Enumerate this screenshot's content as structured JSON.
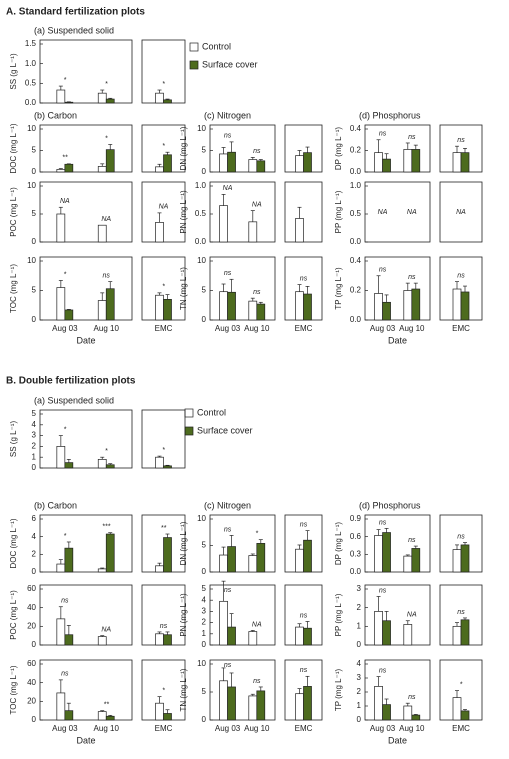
{
  "sections": [
    {
      "title": "A. Standard fertilization plots"
    },
    {
      "title": "B. Double fertilization plots"
    }
  ],
  "chart_data": [
    {
      "type": "bar",
      "title": "(a) Suspended solid",
      "ylabel": "SS (g L⁻¹)",
      "categories": [
        null,
        null,
        null
      ],
      "ylim": [
        0,
        1.5
      ],
      "yticks": [
        {
          "value": 0,
          "label": "0.0"
        },
        {
          "value": 0.5,
          "label": "0.5"
        },
        {
          "value": 1,
          "label": "1.0"
        },
        {
          "value": 1.5,
          "label": "1.5"
        }
      ],
      "annotations": [
        "*",
        "*",
        "*"
      ],
      "series": [
        {
          "name": "Control",
          "color": "#ffffff",
          "values": [
            0.33,
            0.25,
            0.25
          ],
          "errors": [
            0.1,
            0.08,
            0.08
          ]
        },
        {
          "name": "Surface cover",
          "color": "#4d6b1e",
          "values": [
            0.02,
            0.1,
            0.08
          ],
          "errors": [
            0.01,
            0.02,
            0.02
          ]
        }
      ]
    },
    {
      "type": "bar",
      "title": "(b) Carbon",
      "ylabel": "DOC (mg L⁻¹)",
      "categories": [
        null,
        null,
        null
      ],
      "ylim": [
        0,
        10
      ],
      "yticks": [
        0,
        5,
        10
      ],
      "annotations": [
        "**",
        "*",
        "*"
      ],
      "series": [
        {
          "name": "Control",
          "color": "#ffffff",
          "values": [
            0.6,
            1.3,
            1.2
          ],
          "errors": [
            0.2,
            0.6,
            0.6
          ]
        },
        {
          "name": "Surface cover",
          "color": "#4d6b1e",
          "values": [
            1.8,
            5.2,
            4.0
          ],
          "errors": [
            0.1,
            1.2,
            0.6
          ]
        }
      ]
    },
    {
      "type": "bar",
      "ylabel": "POC (mg L⁻¹)",
      "categories": [
        null,
        null,
        null
      ],
      "ylim": [
        0,
        10
      ],
      "yticks": [
        0,
        5,
        10
      ],
      "annotations": [
        "NA",
        "NA",
        "NA"
      ],
      "series": [
        {
          "name": "Control",
          "color": "#ffffff",
          "values": [
            5.0,
            3.0,
            3.5
          ],
          "errors": [
            1.2,
            null,
            1.7
          ]
        },
        {
          "name": "Surface cover",
          "color": "#4d6b1e",
          "values": [
            null,
            null,
            null
          ],
          "errors": [
            null,
            null,
            null
          ]
        }
      ]
    },
    {
      "type": "bar",
      "ylabel": "TOC (mg L⁻¹)",
      "xlabel": "Date",
      "categories": [
        "Aug 03",
        "Aug 10",
        "EMC"
      ],
      "ylim": [
        0,
        10
      ],
      "yticks": [
        0,
        5,
        10
      ],
      "annotations": [
        "*",
        "ns",
        "*"
      ],
      "series": [
        {
          "name": "Control",
          "color": "#ffffff",
          "values": [
            5.5,
            3.3,
            4.2
          ],
          "errors": [
            1.2,
            1.3,
            0.4
          ]
        },
        {
          "name": "Surface cover",
          "color": "#4d6b1e",
          "values": [
            1.7,
            5.3,
            3.5
          ],
          "errors": [
            0.1,
            1.2,
            0.8
          ]
        }
      ]
    },
    {
      "type": "bar",
      "title": "(c) Nitrogen",
      "ylabel": "DN (mg L⁻¹)",
      "categories": [
        null,
        null,
        null
      ],
      "ylim": [
        0,
        10
      ],
      "yticks": [
        0,
        5,
        10
      ],
      "annotations": [
        "ns",
        "ns",
        null
      ],
      "series": [
        {
          "name": "Control",
          "color": "#ffffff",
          "values": [
            4.2,
            2.9,
            3.8
          ],
          "errors": [
            1.5,
            0.5,
            1.2
          ]
        },
        {
          "name": "Surface cover",
          "color": "#4d6b1e",
          "values": [
            4.6,
            2.6,
            4.5
          ],
          "errors": [
            2.4,
            0.3,
            1.3
          ]
        }
      ]
    },
    {
      "type": "bar",
      "ylabel": "PN (mg L⁻¹)",
      "categories": [
        null,
        null,
        null
      ],
      "ylim": [
        0,
        1
      ],
      "yticks": [
        {
          "value": 0,
          "label": "0.0"
        },
        {
          "value": 0.5,
          "label": "0.5"
        },
        {
          "value": 1,
          "label": "1.0"
        }
      ],
      "annotations": [
        "NA",
        "NA",
        null
      ],
      "series": [
        {
          "name": "Control",
          "color": "#ffffff",
          "values": [
            0.65,
            0.36,
            0.42
          ],
          "errors": [
            0.2,
            0.2,
            0.2
          ]
        },
        {
          "name": "Surface cover",
          "color": "#4d6b1e",
          "values": [
            null,
            null,
            null
          ],
          "errors": [
            null,
            null,
            null
          ]
        }
      ]
    },
    {
      "type": "bar",
      "ylabel": "TN (mg L⁻¹)",
      "categories": [
        "Aug 03",
        "Aug 10",
        "EMC"
      ],
      "ylim": [
        0,
        10
      ],
      "yticks": [
        0,
        5,
        10
      ],
      "annotations": [
        "ns",
        "ns",
        "ns"
      ],
      "series": [
        {
          "name": "Control",
          "color": "#ffffff",
          "values": [
            4.8,
            3.2,
            4.8
          ],
          "errors": [
            1.3,
            0.5,
            1.2
          ]
        },
        {
          "name": "Surface cover",
          "color": "#4d6b1e",
          "values": [
            4.7,
            2.7,
            4.4
          ],
          "errors": [
            2.2,
            0.3,
            1.3
          ]
        }
      ]
    },
    {
      "type": "bar",
      "title": "(d) Phosphorus",
      "ylabel": "DP (mg L⁻¹)",
      "categories": [
        null,
        null,
        null
      ],
      "ylim": [
        0,
        0.4
      ],
      "yticks": [
        {
          "value": 0,
          "label": "0.0"
        },
        {
          "value": 0.2,
          "label": "0.2"
        },
        {
          "value": 0.4,
          "label": "0.4"
        }
      ],
      "annotations": [
        "ns",
        "ns",
        "ns"
      ],
      "series": [
        {
          "name": "Control",
          "color": "#ffffff",
          "values": [
            0.18,
            0.21,
            0.18
          ],
          "errors": [
            0.12,
            0.06,
            0.06
          ]
        },
        {
          "name": "Surface cover",
          "color": "#4d6b1e",
          "values": [
            0.12,
            0.21,
            0.18
          ],
          "errors": [
            0.05,
            0.04,
            0.04
          ]
        }
      ]
    },
    {
      "type": "bar",
      "ylabel": "PP (mg L⁻¹)",
      "categories": [
        null,
        null,
        null
      ],
      "ylim": [
        0,
        1
      ],
      "yticks": [
        {
          "value": 0,
          "label": "0.0"
        },
        {
          "value": 0.5,
          "label": "0.5"
        },
        {
          "value": 1,
          "label": "1.0"
        }
      ],
      "annotations": [
        "NA",
        "NA",
        "NA"
      ],
      "series": [
        {
          "name": "Control",
          "color": "#ffffff",
          "values": [
            null,
            null,
            null
          ],
          "errors": [
            null,
            null,
            null
          ]
        },
        {
          "name": "Surface cover",
          "color": "#4d6b1e",
          "values": [
            null,
            null,
            null
          ],
          "errors": [
            null,
            null,
            null
          ]
        }
      ]
    },
    {
      "type": "bar",
      "ylabel": "TP (mg L⁻¹)",
      "xlabel": "Date",
      "categories": [
        "Aug 03",
        "Aug 10",
        "EMC"
      ],
      "ylim": [
        0,
        0.4
      ],
      "yticks": [
        {
          "value": 0,
          "label": "0.0"
        },
        {
          "value": 0.2,
          "label": "0.2"
        },
        {
          "value": 0.4,
          "label": "0.4"
        }
      ],
      "annotations": [
        "ns",
        "ns",
        "ns"
      ],
      "series": [
        {
          "name": "Control",
          "color": "#ffffff",
          "values": [
            0.18,
            0.2,
            0.21
          ],
          "errors": [
            0.12,
            0.05,
            0.05
          ]
        },
        {
          "name": "Surface cover",
          "color": "#4d6b1e",
          "values": [
            0.12,
            0.21,
            0.19
          ],
          "errors": [
            0.05,
            0.04,
            0.04
          ]
        }
      ]
    },
    {
      "type": "bar",
      "title": "(a) Suspended solid",
      "ylabel": "SS (g L⁻¹)",
      "categories": [
        null,
        null,
        null
      ],
      "ylim": [
        0,
        5
      ],
      "yticks": [
        0,
        1,
        2,
        3,
        4,
        5
      ],
      "annotations": [
        "*",
        "*",
        "*"
      ],
      "series": [
        {
          "name": "Control",
          "color": "#ffffff",
          "values": [
            2.0,
            0.8,
            1.0
          ],
          "errors": [
            1.0,
            0.2,
            0.1
          ]
        },
        {
          "name": "Surface cover",
          "color": "#4d6b1e",
          "values": [
            0.5,
            0.3,
            0.2
          ],
          "errors": [
            0.3,
            0.1,
            0.05
          ]
        }
      ]
    },
    {
      "type": "bar",
      "title": "(b) Carbon",
      "ylabel": "DOC (mg L⁻¹)",
      "categories": [
        null,
        null,
        null
      ],
      "ylim": [
        0,
        6
      ],
      "yticks": [
        0,
        2,
        4,
        6
      ],
      "annotations": [
        "*",
        "***",
        "**"
      ],
      "series": [
        {
          "name": "Control",
          "color": "#ffffff",
          "values": [
            0.9,
            0.35,
            0.7
          ],
          "errors": [
            0.5,
            0.1,
            0.3
          ]
        },
        {
          "name": "Surface cover",
          "color": "#4d6b1e",
          "values": [
            2.7,
            4.3,
            3.9
          ],
          "errors": [
            0.7,
            0.15,
            0.4
          ]
        }
      ]
    },
    {
      "type": "bar",
      "ylabel": "POC (mg L⁻¹)",
      "categories": [
        null,
        null,
        null
      ],
      "ylim": [
        0,
        60
      ],
      "yticks": [
        0,
        20,
        40,
        60
      ],
      "annotations": [
        "ns",
        "NA",
        "ns"
      ],
      "series": [
        {
          "name": "Control",
          "color": "#ffffff",
          "values": [
            28,
            9,
            12
          ],
          "errors": [
            13,
            1,
            2
          ]
        },
        {
          "name": "Surface cover",
          "color": "#4d6b1e",
          "values": [
            11,
            null,
            11
          ],
          "errors": [
            10,
            null,
            3
          ]
        }
      ]
    },
    {
      "type": "bar",
      "ylabel": "TOC (mg L⁻¹)",
      "xlabel": "Date",
      "categories": [
        "Aug 03",
        "Aug 10",
        "EMC"
      ],
      "ylim": [
        0,
        60
      ],
      "yticks": [
        0,
        20,
        40,
        60
      ],
      "annotations": [
        "ns",
        "**",
        "*"
      ],
      "series": [
        {
          "name": "Control",
          "color": "#ffffff",
          "values": [
            29,
            9,
            18
          ],
          "errors": [
            14,
            1,
            7
          ]
        },
        {
          "name": "Surface cover",
          "color": "#4d6b1e",
          "values": [
            10,
            4,
            7
          ],
          "errors": [
            8,
            1,
            4
          ]
        }
      ]
    },
    {
      "type": "bar",
      "title": "(c) Nitrogen",
      "ylabel": "DN (mg L⁻¹)",
      "categories": [
        null,
        null,
        null
      ],
      "ylim": [
        0,
        10
      ],
      "yticks": [
        0,
        5,
        10
      ],
      "annotations": [
        "ns",
        "*",
        "ns"
      ],
      "series": [
        {
          "name": "Control",
          "color": "#ffffff",
          "values": [
            3.2,
            3.1,
            4.3
          ],
          "errors": [
            1.5,
            0.3,
            0.8
          ]
        },
        {
          "name": "Surface cover",
          "color": "#4d6b1e",
          "values": [
            4.8,
            5.4,
            6.0
          ],
          "errors": [
            2.1,
            0.7,
            1.8
          ]
        }
      ]
    },
    {
      "type": "bar",
      "ylabel": "PN (mg L⁻¹)",
      "categories": [
        null,
        null,
        null
      ],
      "ylim": [
        0,
        5
      ],
      "yticks": [
        0,
        1,
        2,
        3,
        4,
        5
      ],
      "annotations": [
        "ns",
        "NA",
        "ns"
      ],
      "series": [
        {
          "name": "Control",
          "color": "#ffffff",
          "values": [
            3.9,
            1.2,
            1.6
          ],
          "errors": [
            1.8,
            0.1,
            0.3
          ]
        },
        {
          "name": "Surface cover",
          "color": "#4d6b1e",
          "values": [
            1.6,
            null,
            1.5
          ],
          "errors": [
            1.2,
            null,
            0.6
          ]
        }
      ]
    },
    {
      "type": "bar",
      "ylabel": "TN (mg L⁻¹)",
      "categories": [
        "Aug 03",
        "Aug 10",
        "EMC"
      ],
      "ylim": [
        0,
        10
      ],
      "yticks": [
        0,
        5,
        10
      ],
      "annotations": [
        "ns",
        "ns",
        "ns"
      ],
      "series": [
        {
          "name": "Control",
          "color": "#ffffff",
          "values": [
            7.0,
            4.3,
            4.7
          ],
          "errors": [
            2.3,
            0.3,
            0.9
          ]
        },
        {
          "name": "Surface cover",
          "color": "#4d6b1e",
          "values": [
            5.9,
            5.2,
            6.0
          ],
          "errors": [
            2.5,
            0.7,
            1.8
          ]
        }
      ]
    },
    {
      "type": "bar",
      "title": "(d) Phosphorus",
      "ylabel": "DP (mg L⁻¹)",
      "categories": [
        null,
        null,
        null
      ],
      "ylim": [
        0,
        0.9
      ],
      "yticks": [
        {
          "value": 0,
          "label": "0.0"
        },
        0.3,
        0.6,
        0.9
      ],
      "annotations": [
        "ns",
        "ns",
        "ns"
      ],
      "series": [
        {
          "name": "Control",
          "color": "#ffffff",
          "values": [
            0.62,
            0.27,
            0.38
          ],
          "errors": [
            0.1,
            0.02,
            0.08
          ]
        },
        {
          "name": "Surface cover",
          "color": "#4d6b1e",
          "values": [
            0.67,
            0.4,
            0.46
          ],
          "errors": [
            0.07,
            0.04,
            0.04
          ]
        }
      ]
    },
    {
      "type": "bar",
      "ylabel": "PP (mg L⁻¹)",
      "categories": [
        null,
        null,
        null
      ],
      "ylim": [
        0,
        3
      ],
      "yticks": [
        0,
        1,
        2,
        3
      ],
      "annotations": [
        "ns",
        "NA",
        "ns"
      ],
      "series": [
        {
          "name": "Control",
          "color": "#ffffff",
          "values": [
            1.8,
            1.1,
            1.0
          ],
          "errors": [
            0.8,
            0.2,
            0.2
          ]
        },
        {
          "name": "Surface cover",
          "color": "#4d6b1e",
          "values": [
            1.3,
            null,
            1.35
          ],
          "errors": [
            0.5,
            null,
            0.1
          ]
        }
      ]
    },
    {
      "type": "bar",
      "ylabel": "TP (mg L⁻¹)",
      "xlabel": "Date",
      "categories": [
        "Aug 03",
        "Aug 10",
        "EMC"
      ],
      "ylim": [
        0,
        4
      ],
      "yticks": [
        0,
        1,
        2,
        3,
        4
      ],
      "annotations": [
        "ns",
        "ns",
        "*"
      ],
      "series": [
        {
          "name": "Control",
          "color": "#ffffff",
          "values": [
            2.4,
            1.0,
            1.6
          ],
          "errors": [
            0.7,
            0.2,
            0.5
          ]
        },
        {
          "name": "Surface cover",
          "color": "#4d6b1e",
          "values": [
            1.1,
            0.35,
            0.65
          ],
          "errors": [
            0.4,
            0.05,
            0.1
          ]
        }
      ]
    }
  ]
}
